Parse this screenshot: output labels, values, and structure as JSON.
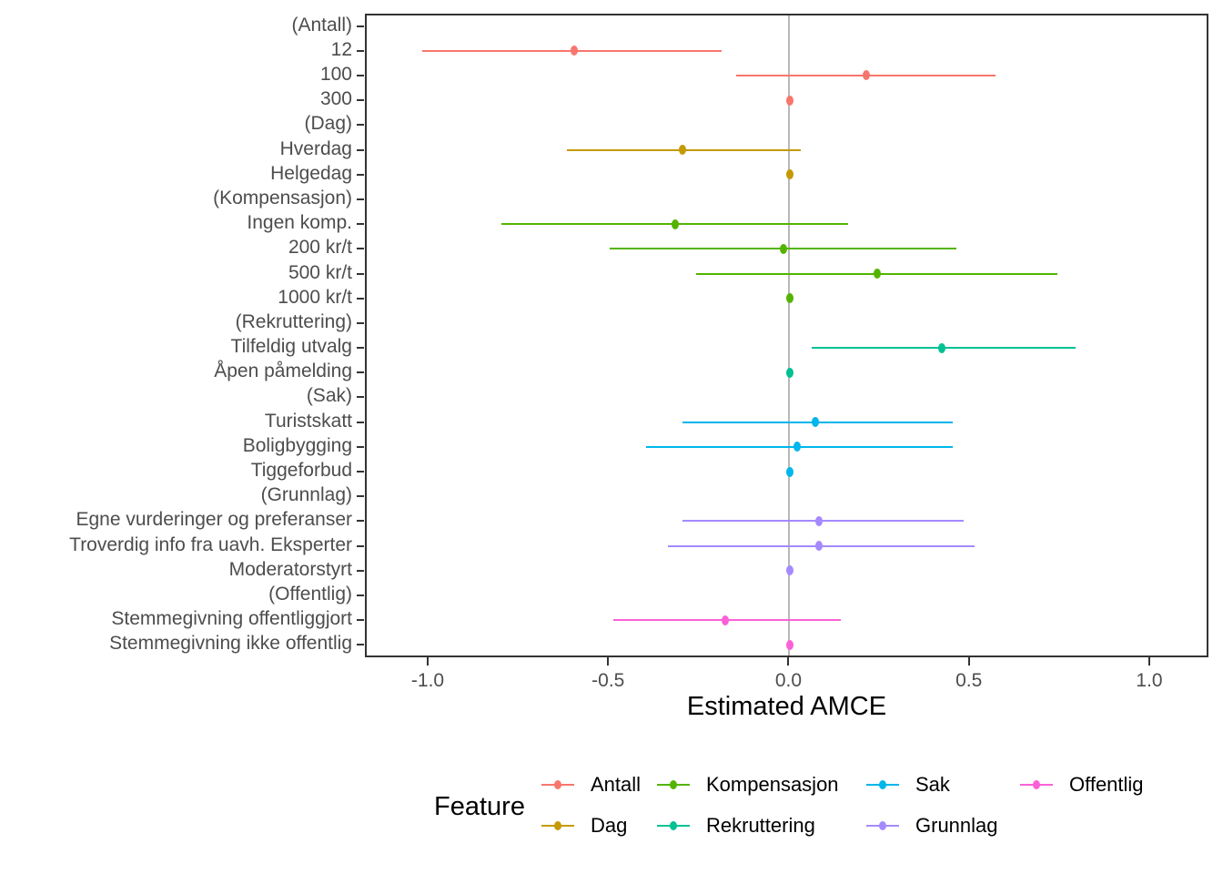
{
  "chart_data": {
    "type": "scatter",
    "subtype": "pointrange-forest-plot",
    "title": "",
    "xlabel": "Estimated AMCE",
    "xlim": [
      -1.174,
      1.164
    ],
    "x_ticks": [
      {
        "value": -1.0,
        "label": "-1.0"
      },
      {
        "value": -0.5,
        "label": "-0.5"
      },
      {
        "value": 0.0,
        "label": "0.0"
      },
      {
        "value": 0.5,
        "label": "0.5"
      },
      {
        "value": 1.0,
        "label": "1.0"
      }
    ],
    "zero_reference_line": 0.0,
    "grid": "off",
    "colors": {
      "Antall": "#F8766D",
      "Dag": "#C49A00",
      "Kompensasjon": "#53B400",
      "Rekruttering": "#00C094",
      "Sak": "#00B6EB",
      "Grunnlag": "#A58AFF",
      "Offentlig": "#FB61D7",
      "zero_line": "#b8b8b8",
      "axis": "#333333",
      "tick_text": "#4d4d4d"
    },
    "rows": [
      {
        "label": "(Antall)",
        "feature": null
      },
      {
        "label": "12",
        "feature": "Antall",
        "est": -0.6,
        "lo": -1.02,
        "hi": -0.19
      },
      {
        "label": "100",
        "feature": "Antall",
        "est": 0.21,
        "lo": -0.15,
        "hi": 0.57
      },
      {
        "label": "300",
        "feature": "Antall",
        "est": 0.0,
        "lo": 0.0,
        "hi": 0.0
      },
      {
        "label": "(Dag)",
        "feature": null
      },
      {
        "label": "Hverdag",
        "feature": "Dag",
        "est": -0.3,
        "lo": -0.62,
        "hi": 0.03
      },
      {
        "label": "Helgedag",
        "feature": "Dag",
        "est": 0.0,
        "lo": 0.0,
        "hi": 0.0
      },
      {
        "label": "(Kompensasjon)",
        "feature": null
      },
      {
        "label": "Ingen komp.",
        "feature": "Kompensasjon",
        "est": -0.32,
        "lo": -0.8,
        "hi": 0.16
      },
      {
        "label": "200 kr/t",
        "feature": "Kompensasjon",
        "est": -0.02,
        "lo": -0.5,
        "hi": 0.46
      },
      {
        "label": "500 kr/t",
        "feature": "Kompensasjon",
        "est": 0.24,
        "lo": -0.26,
        "hi": 0.74
      },
      {
        "label": "1000 kr/t",
        "feature": "Kompensasjon",
        "est": 0.0,
        "lo": 0.0,
        "hi": 0.0
      },
      {
        "label": "(Rekruttering)",
        "feature": null
      },
      {
        "label": "Tilfeldig utvalg",
        "feature": "Rekruttering",
        "est": 0.42,
        "lo": 0.06,
        "hi": 0.79
      },
      {
        "label": "Åpen påmelding",
        "feature": "Rekruttering",
        "est": 0.0,
        "lo": 0.0,
        "hi": 0.0
      },
      {
        "label": "(Sak)",
        "feature": null
      },
      {
        "label": "Turistskatt",
        "feature": "Sak",
        "est": 0.07,
        "lo": -0.3,
        "hi": 0.45
      },
      {
        "label": "Boligbygging",
        "feature": "Sak",
        "est": 0.02,
        "lo": -0.4,
        "hi": 0.45
      },
      {
        "label": "Tiggeforbud",
        "feature": "Sak",
        "est": 0.0,
        "lo": 0.0,
        "hi": 0.0
      },
      {
        "label": "(Grunnlag)",
        "feature": null
      },
      {
        "label": "Egne vurderinger og preferanser",
        "feature": "Grunnlag",
        "est": 0.08,
        "lo": -0.3,
        "hi": 0.48
      },
      {
        "label": "Troverdig info fra uavh. Eksperter",
        "feature": "Grunnlag",
        "est": 0.08,
        "lo": -0.34,
        "hi": 0.51
      },
      {
        "label": "Moderatorstyrt",
        "feature": "Grunnlag",
        "est": 0.0,
        "lo": 0.0,
        "hi": 0.0
      },
      {
        "label": "(Offentlig)",
        "feature": null
      },
      {
        "label": "Stemmegivning offentliggjort",
        "feature": "Offentlig",
        "est": -0.18,
        "lo": -0.49,
        "hi": 0.14
      },
      {
        "label": "Stemmegivning ikke offentlig",
        "feature": "Offentlig",
        "est": 0.0,
        "lo": 0.0,
        "hi": 0.0
      }
    ],
    "legend": {
      "title": "Feature",
      "position": "bottom",
      "entries": [
        {
          "label": "Antall"
        },
        {
          "label": "Dag"
        },
        {
          "label": "Kompensasjon"
        },
        {
          "label": "Rekruttering"
        },
        {
          "label": "Sak"
        },
        {
          "label": "Grunnlag"
        },
        {
          "label": "Offentlig"
        }
      ]
    }
  }
}
